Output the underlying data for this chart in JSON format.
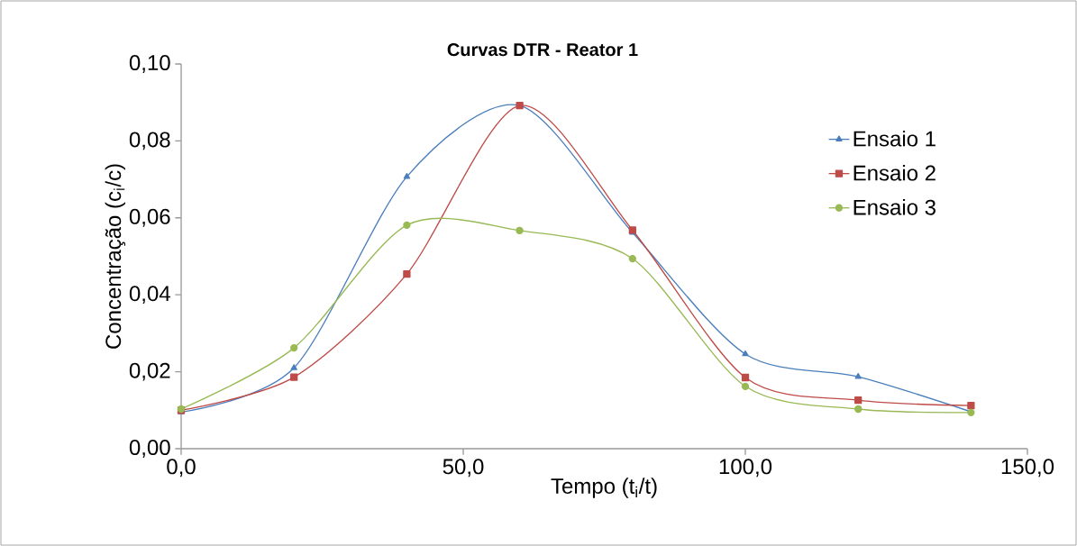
{
  "chart_data": {
    "type": "line",
    "title": "Curvas DTR - Reator 1",
    "xlabel": "Tempo (t$_{i}$/t)",
    "ylabel": "Concentração (c$_{i}$/c)",
    "x": [
      0,
      20,
      40,
      60,
      80,
      100,
      120,
      140
    ],
    "series": [
      {
        "name": "Ensaio 1",
        "color": "#4a7ebb",
        "marker": "triangle",
        "values": [
          0.0095,
          0.021,
          0.0707,
          0.0892,
          0.0562,
          0.0246,
          0.0187,
          0.0096
        ]
      },
      {
        "name": "Ensaio 2",
        "color": "#be4b48",
        "marker": "square",
        "values": [
          0.01,
          0.0186,
          0.0454,
          0.0892,
          0.0568,
          0.0185,
          0.0126,
          0.0112
        ]
      },
      {
        "name": "Ensaio 3",
        "color": "#98b954",
        "marker": "circle",
        "values": [
          0.0103,
          0.0262,
          0.0581,
          0.0567,
          0.0494,
          0.0162,
          0.0103,
          0.0094
        ]
      }
    ],
    "xlim": [
      0,
      150
    ],
    "ylim": [
      0,
      0.1
    ],
    "xticks": [
      {
        "value": 0,
        "label": "0,0"
      },
      {
        "value": 50,
        "label": "50,0"
      },
      {
        "value": 100,
        "label": "100,0"
      },
      {
        "value": 150,
        "label": "150,0"
      }
    ],
    "yticks": [
      {
        "value": 0,
        "label": "0,00"
      },
      {
        "value": 0.02,
        "label": "0,02"
      },
      {
        "value": 0.04,
        "label": "0,04"
      },
      {
        "value": 0.06,
        "label": "0,06"
      },
      {
        "value": 0.08,
        "label": "0,08"
      },
      {
        "value": 0.1,
        "label": "0,10"
      }
    ],
    "grid": false,
    "legend": "right",
    "line_style": "solid"
  }
}
